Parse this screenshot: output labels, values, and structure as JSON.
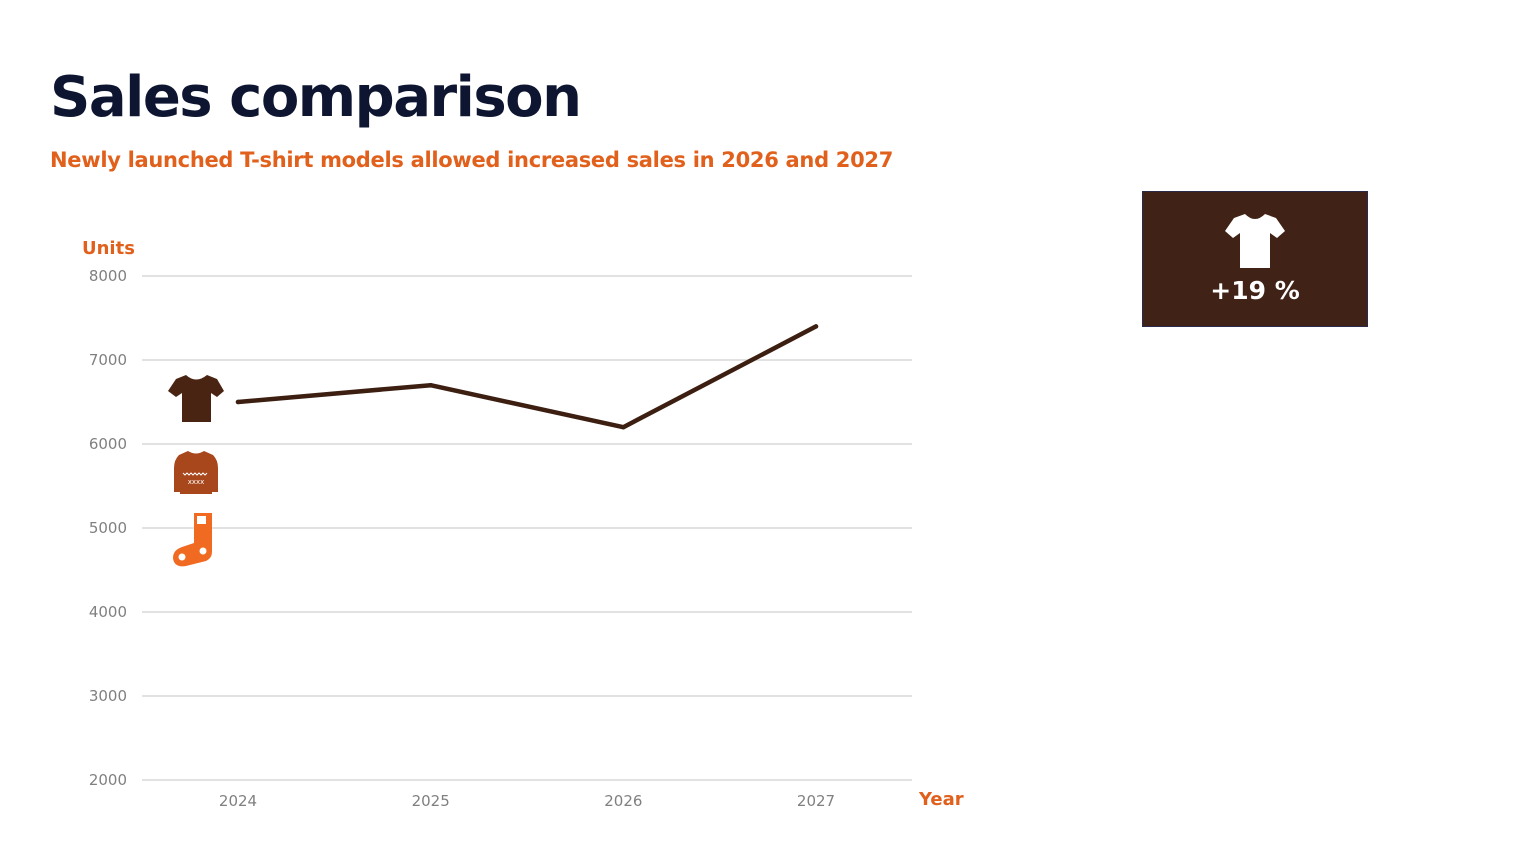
{
  "header": {
    "title": "Sales comparison",
    "subtitle": "Newly launched T-shirt models allowed increased sales in 2026 and 2027"
  },
  "colors": {
    "title": "#0d1530",
    "accent": "#e0601c",
    "line": "#3d1f12",
    "tshirt_icon": "#4a2412",
    "sweater_icon": "#a8461c",
    "sock_icon": "#f06a22",
    "card_bg": "#402316",
    "grid": "#d9d9d9"
  },
  "kpi": {
    "value": "+19 %",
    "icon": "tshirt-icon"
  },
  "legend_icons": [
    "tshirt-icon",
    "sweater-icon",
    "sock-icon"
  ],
  "chart_data": {
    "type": "line",
    "x": [
      "2024",
      "2025",
      "2026",
      "2027"
    ],
    "series": [
      {
        "values": [
          6500,
          6700,
          6200,
          7400
        ]
      }
    ],
    "ylabel": "Units",
    "xlabel": "Year",
    "ylim": [
      2000,
      8000
    ],
    "yticks": [
      2000,
      3000,
      4000,
      5000,
      6000,
      7000,
      8000
    ],
    "grid": true
  }
}
